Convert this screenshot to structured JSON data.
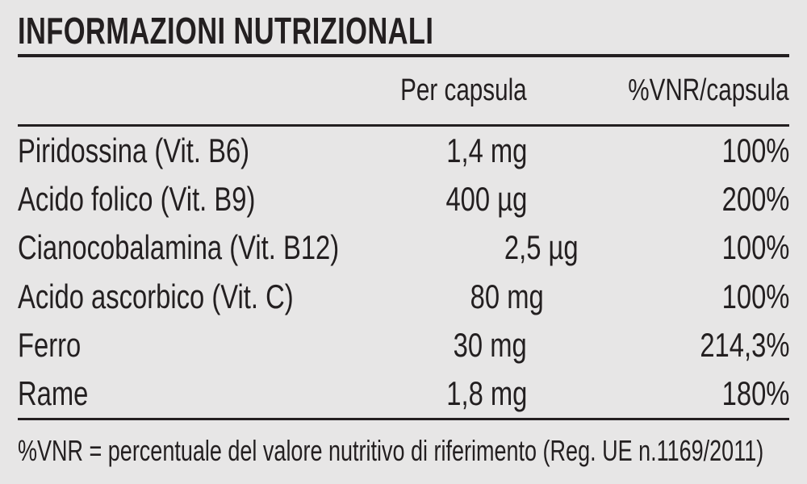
{
  "title": "INFORMAZIONI NUTRIZIONALI",
  "colors": {
    "background": "#e7e6e6",
    "ink": "#231f20"
  },
  "table": {
    "header": {
      "amount": "Per capsula",
      "vnr": "%VNR/capsula"
    },
    "rows": [
      {
        "name": "Piridossina (Vit. B6)",
        "amount": "1,4 mg",
        "vnr": "100%"
      },
      {
        "name": "Acido folico (Vit. B9)",
        "amount": "400 µg",
        "vnr": "200%"
      },
      {
        "name": "Cianocobalamina (Vit. B12)",
        "amount": "2,5 µg",
        "vnr": "100%"
      },
      {
        "name": "Acido ascorbico (Vit. C)",
        "amount": "80 mg",
        "vnr": "100%"
      },
      {
        "name": "Ferro",
        "amount": "30 mg",
        "vnr": "214,3%"
      },
      {
        "name": "Rame",
        "amount": "1,8 mg",
        "vnr": "180%"
      }
    ]
  },
  "footnote": "%VNR = percentuale del valore nutritivo di riferimento (Reg. UE n.1169/2011)"
}
